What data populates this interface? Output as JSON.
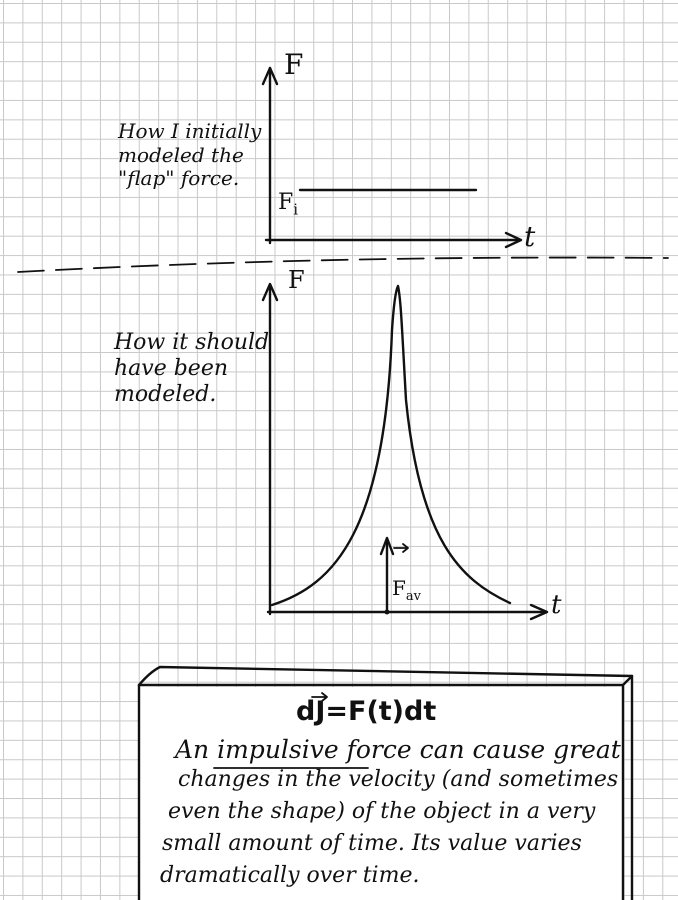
{
  "top_graph": {
    "note": "How I initially\nmodeled the\n\"flap\" force.",
    "y_axis_label": "F",
    "x_axis_label": "t",
    "level_label": "F",
    "level_label_sub": "i"
  },
  "bottom_graph": {
    "note": "How it should\nhave been\nmodeled.",
    "y_axis_label": "F",
    "x_axis_label": "t",
    "average_label": "F",
    "average_label_sub": "av"
  },
  "box": {
    "equation": "dJ=F(t)dt",
    "lead": "An",
    "term": "impulsive force",
    "line1_rest": " can cause great",
    "line2": "changes in the velocity (and sometimes",
    "line3": "even the shape) of the object in a very",
    "line4": "small amount of time. Its value varies",
    "line5": "dramatically over time."
  }
}
